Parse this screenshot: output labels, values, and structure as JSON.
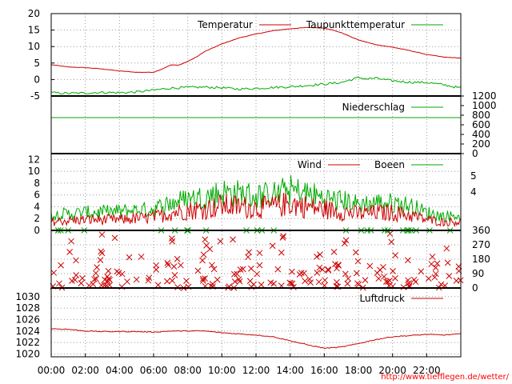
{
  "chart_data": [
    {
      "type": "line",
      "panel": "temperature",
      "x_ticks": [
        "00:00",
        "02:00",
        "04:00",
        "06:00",
        "08:00",
        "10:00",
        "12:00",
        "14:00",
        "16:00",
        "18:00",
        "20:00",
        "22:00"
      ],
      "x_range_hours": [
        0,
        24
      ],
      "ylim": [
        -5,
        20
      ],
      "y_ticks": [
        "20",
        "15",
        "10",
        "5",
        "0",
        "-5"
      ],
      "grid": true,
      "legend_position": "top",
      "series": [
        {
          "name": "Temperatur",
          "color": "#cc0000",
          "x": [
            0,
            1,
            2,
            3,
            4,
            5,
            6,
            6.5,
            7,
            7.5,
            8,
            8.5,
            9,
            10,
            11,
            12,
            13,
            14,
            15,
            16,
            16.5,
            17,
            18,
            19,
            20,
            21,
            22,
            23,
            24
          ],
          "values": [
            4.5,
            3.8,
            3.6,
            3.2,
            2.6,
            2.2,
            2.2,
            3.2,
            4.4,
            4.4,
            5.5,
            6.8,
            8.5,
            10.8,
            12.6,
            13.8,
            14.8,
            15.4,
            15.8,
            15.6,
            15.0,
            14.2,
            12.0,
            10.6,
            9.8,
            8.8,
            7.6,
            6.8,
            6.5
          ]
        },
        {
          "name": "Taupunkttemperatur",
          "color": "#00aa00",
          "x": [
            0,
            1,
            2,
            3,
            4,
            5,
            6,
            7,
            8,
            9,
            10,
            11,
            12,
            13,
            14,
            15,
            16,
            17,
            18,
            18.5,
            19,
            20,
            21,
            22,
            23,
            24
          ],
          "values": [
            -4.0,
            -4.2,
            -4.1,
            -3.9,
            -4.0,
            -3.8,
            -3.2,
            -2.6,
            -2.4,
            -2.3,
            -2.5,
            -2.9,
            -2.7,
            -2.4,
            -2.2,
            -1.8,
            -1.4,
            -0.9,
            0.6,
            0.2,
            0.4,
            -0.4,
            -0.8,
            -0.9,
            -1.6,
            -2.6
          ]
        }
      ]
    },
    {
      "type": "line",
      "panel": "precipitation",
      "ylim": [
        0,
        1200
      ],
      "y_ticks": [
        "1200",
        "1000",
        "800",
        "600",
        "400",
        "200",
        "0"
      ],
      "y_axis_side": "right",
      "legend_position": "top-right",
      "series": [
        {
          "name": "Niederschlag",
          "color": "#00aa00",
          "x": [
            0,
            24
          ],
          "values": [
            750,
            750
          ]
        }
      ]
    },
    {
      "type": "line",
      "panel": "wind",
      "ylim": [
        0,
        13
      ],
      "y_ticks": [
        "12",
        "10",
        "8",
        "6",
        "4",
        "2",
        "0"
      ],
      "y2_ticks": [
        "5",
        "4"
      ],
      "legend_position": "top-right",
      "series": [
        {
          "name": "Wind",
          "color": "#cc0000",
          "x": [
            0,
            2,
            4,
            6,
            7,
            8,
            9,
            10,
            11,
            12,
            13,
            14,
            15,
            16,
            17,
            18,
            19,
            20,
            21,
            22,
            23,
            24
          ],
          "values": [
            1.5,
            1.8,
            1.8,
            2.2,
            3.0,
            3.4,
            3.6,
            4.2,
            4.0,
            3.8,
            4.0,
            4.6,
            4.0,
            3.6,
            3.2,
            2.8,
            3.0,
            3.0,
            2.6,
            1.8,
            1.4,
            1.5
          ]
        },
        {
          "name": "Boeen",
          "color": "#00aa00",
          "x": [
            0,
            2,
            4,
            6,
            7,
            8,
            9,
            10,
            11,
            12,
            13,
            14,
            15,
            16,
            17,
            18,
            19,
            20,
            21,
            22,
            23,
            24
          ],
          "values": [
            2.6,
            3.0,
            3.2,
            3.6,
            4.6,
            5.2,
            5.6,
            6.4,
            6.2,
            5.8,
            6.0,
            6.8,
            6.2,
            5.4,
            5.0,
            4.4,
            4.6,
            4.6,
            4.2,
            3.0,
            2.4,
            2.6
          ]
        }
      ]
    },
    {
      "type": "scatter",
      "panel": "wind-direction",
      "ylim": [
        0,
        360
      ],
      "y_ticks": [
        "360",
        "270",
        "180",
        "90",
        "0"
      ],
      "y_axis_side": "right",
      "marker": "x",
      "color": "#cc0000",
      "secondary_color": "#00aa00"
    },
    {
      "type": "line",
      "panel": "pressure",
      "ylim": [
        1019.5,
        1031.5
      ],
      "y_ticks": [
        "1030",
        "1028",
        "1026",
        "1024",
        "1022",
        "1020"
      ],
      "legend_position": "top-right",
      "series": [
        {
          "name": "Luftdruck",
          "color": "#cc0000",
          "x": [
            0,
            1,
            2,
            3,
            4,
            5,
            6,
            7,
            8,
            9,
            10,
            11,
            12,
            13,
            14,
            15,
            16,
            17,
            18,
            19,
            20,
            21,
            22,
            23,
            24
          ],
          "values": [
            1024.4,
            1024.3,
            1024.0,
            1023.9,
            1023.9,
            1023.9,
            1023.8,
            1024.0,
            1024.0,
            1024.0,
            1023.7,
            1023.5,
            1023.3,
            1023.0,
            1022.3,
            1021.6,
            1021.0,
            1021.2,
            1021.8,
            1022.5,
            1023.0,
            1023.2,
            1023.4,
            1023.3,
            1023.5
          ]
        }
      ]
    }
  ],
  "source_text": "http://www.tiefflegen.de/wetter/"
}
